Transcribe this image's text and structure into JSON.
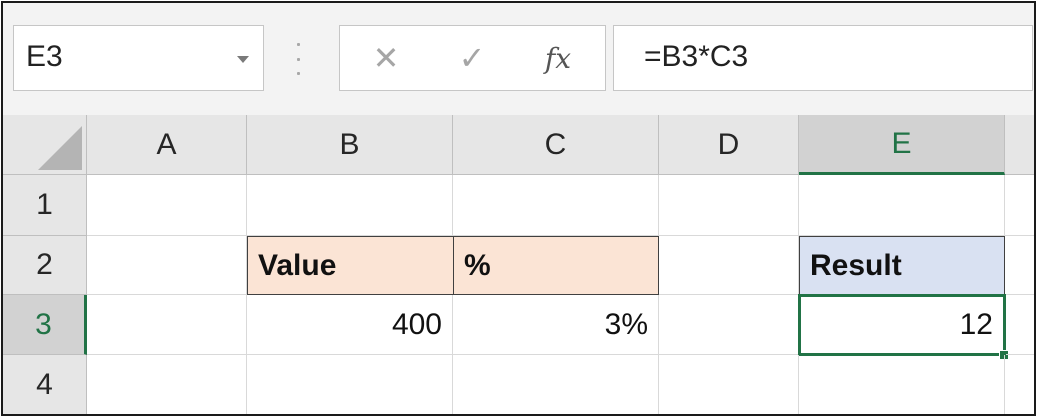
{
  "name_box": {
    "value": "E3"
  },
  "formula_buttons": {
    "cancel": "✕",
    "enter": "✓",
    "insert_function": "fx"
  },
  "formula_bar": {
    "value": "=B3*C3"
  },
  "columns": [
    "A",
    "B",
    "C",
    "D",
    "E"
  ],
  "rows": [
    "1",
    "2",
    "3",
    "4"
  ],
  "selected": {
    "column": "E",
    "row": "3"
  },
  "cells": {
    "B2": "Value",
    "C2": "%",
    "E2": "Result",
    "B3": "400",
    "C3": "3%",
    "E3": "12"
  },
  "colors": {
    "accent": "#217346",
    "header_orange": "#fbe4d5",
    "header_blue": "#d9e1f2"
  }
}
